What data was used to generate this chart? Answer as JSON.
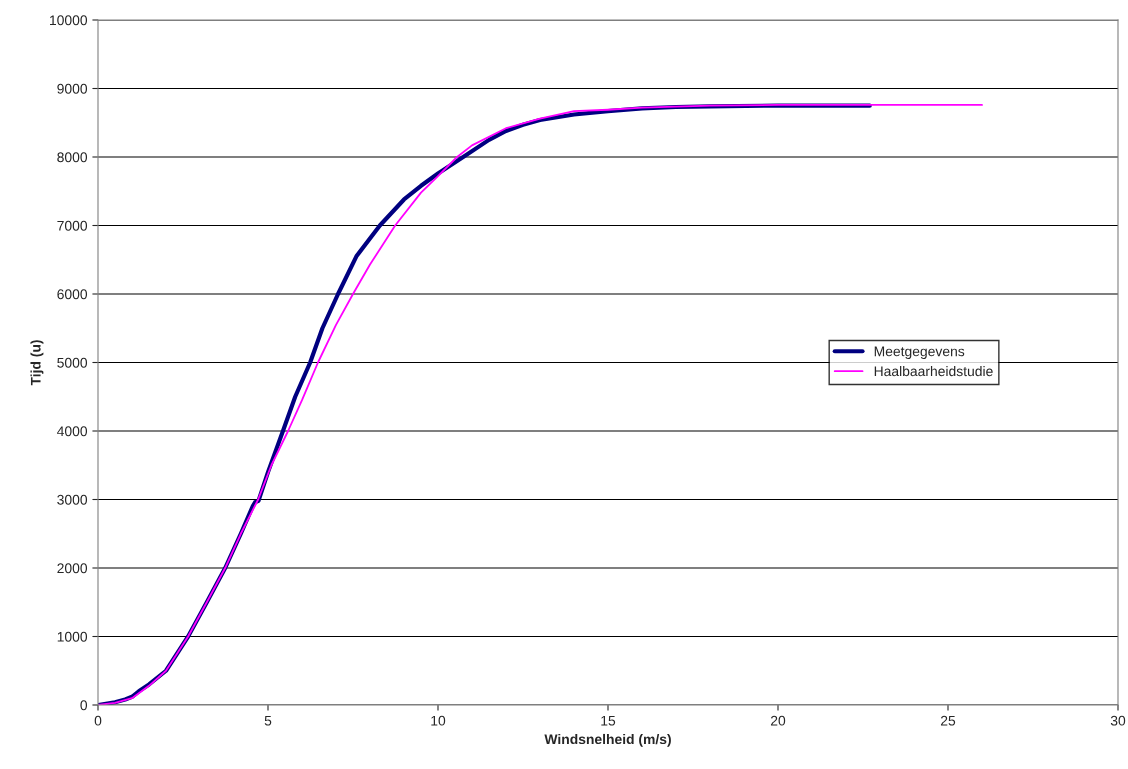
{
  "chart_data": {
    "type": "line",
    "xlabel": "Windsnelheid (m/s)",
    "ylabel": "Tijd (u)",
    "xlim": [
      0,
      30
    ],
    "ylim": [
      0,
      10000
    ],
    "xticks": [
      0,
      5,
      10,
      15,
      20,
      25,
      30
    ],
    "yticks": [
      0,
      1000,
      2000,
      3000,
      4000,
      5000,
      6000,
      7000,
      8000,
      9000,
      10000
    ],
    "grid": "y",
    "legend": "right",
    "marker": "none",
    "line_style": "solid",
    "series": [
      {
        "name": "Meetgegevens",
        "color": "#000080",
        "x": [
          0,
          0.5,
          0.8,
          1.0,
          1.2,
          1.5,
          2,
          2.65,
          3.2,
          3.74,
          4.2,
          4.55,
          4.62,
          4.72,
          5.0,
          5.44,
          5.8,
          6.24,
          6.6,
          7.06,
          7.6,
          8.29,
          9,
          9.5,
          10,
          10.74,
          11.5,
          12,
          12.5,
          13,
          14,
          15,
          16,
          17,
          18,
          20,
          22.7
        ],
        "values": [
          0,
          40,
          80,
          120,
          200,
          300,
          500,
          1000,
          1500,
          2000,
          2500,
          2900,
          2960,
          2980,
          3400,
          4000,
          4500,
          5000,
          5500,
          6000,
          6550,
          7000,
          7380,
          7580,
          7760,
          8000,
          8250,
          8380,
          8470,
          8540,
          8620,
          8670,
          8710,
          8730,
          8740,
          8750,
          8750
        ]
      },
      {
        "name": "Haalbaarheidstudie",
        "color": "#ff00ff",
        "x": [
          0,
          0.5,
          1.0,
          1.5,
          2,
          2.65,
          3.2,
          3.74,
          4.2,
          4.71,
          5.1,
          5.59,
          6.0,
          6.47,
          7.0,
          7.5,
          8.0,
          8.74,
          9.5,
          10.0,
          10.56,
          11,
          12,
          13,
          14,
          15,
          16,
          18,
          20,
          22,
          26
        ],
        "values": [
          0,
          30,
          100,
          280,
          500,
          1000,
          1500,
          2000,
          2500,
          3000,
          3500,
          4000,
          4450,
          5000,
          5550,
          6000,
          6430,
          7000,
          7480,
          7720,
          8000,
          8170,
          8420,
          8560,
          8670,
          8690,
          8720,
          8750,
          8760,
          8760,
          8760
        ]
      }
    ]
  }
}
